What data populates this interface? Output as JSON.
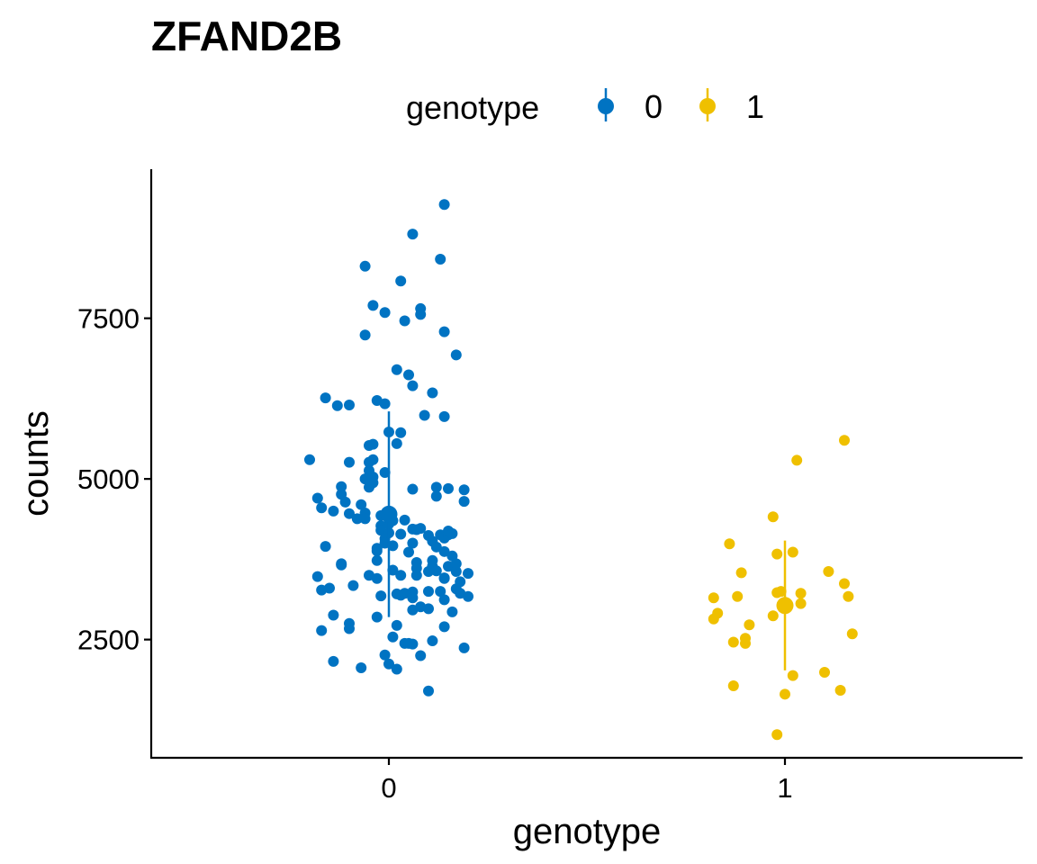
{
  "chart_data": {
    "type": "scatter",
    "title": "ZFAND2B",
    "xlabel": "genotype",
    "ylabel": "counts",
    "categories": [
      "0",
      "1"
    ],
    "ylim": [
      660,
      9820
    ],
    "yticks": [
      2500,
      5000,
      7500
    ],
    "grid": false,
    "legend": {
      "title": "genotype",
      "position": "top",
      "entries": [
        "0",
        "1"
      ]
    },
    "colors": {
      "0": "#0073C2",
      "1": "#EFC000"
    },
    "series": [
      {
        "name": "0",
        "summary": {
          "mean": 4450,
          "lower": 2850,
          "upper": 6050
        },
        "points": [
          {
            "x": -0.2,
            "y": 5300
          },
          {
            "x": -0.18,
            "y": 4700
          },
          {
            "x": -0.17,
            "y": 4550
          },
          {
            "x": -0.18,
            "y": 3480
          },
          {
            "x": -0.17,
            "y": 3270
          },
          {
            "x": -0.17,
            "y": 2640
          },
          {
            "x": -0.14,
            "y": 2880
          },
          {
            "x": -0.15,
            "y": 3300
          },
          {
            "x": -0.16,
            "y": 6260
          },
          {
            "x": -0.16,
            "y": 3950
          },
          {
            "x": -0.13,
            "y": 6140
          },
          {
            "x": -0.14,
            "y": 4500
          },
          {
            "x": -0.14,
            "y": 2160
          },
          {
            "x": -0.12,
            "y": 4760
          },
          {
            "x": -0.12,
            "y": 4880
          },
          {
            "x": -0.12,
            "y": 3680
          },
          {
            "x": -0.11,
            "y": 4640
          },
          {
            "x": -0.1,
            "y": 4460
          },
          {
            "x": -0.1,
            "y": 2750
          },
          {
            "x": -0.12,
            "y": 3660
          },
          {
            "x": -0.1,
            "y": 2670
          },
          {
            "x": -0.1,
            "y": 6150
          },
          {
            "x": -0.1,
            "y": 5260
          },
          {
            "x": -0.09,
            "y": 3340
          },
          {
            "x": -0.08,
            "y": 4380
          },
          {
            "x": -0.07,
            "y": 2060
          },
          {
            "x": -0.07,
            "y": 4600
          },
          {
            "x": -0.06,
            "y": 4470
          },
          {
            "x": -0.06,
            "y": 4380
          },
          {
            "x": -0.05,
            "y": 4870
          },
          {
            "x": -0.05,
            "y": 3500
          },
          {
            "x": -0.05,
            "y": 5130
          },
          {
            "x": -0.04,
            "y": 5300
          },
          {
            "x": -0.04,
            "y": 4940
          },
          {
            "x": -0.03,
            "y": 3450
          },
          {
            "x": -0.06,
            "y": 5000
          },
          {
            "x": -0.06,
            "y": 8310
          },
          {
            "x": -0.06,
            "y": 7240
          },
          {
            "x": -0.05,
            "y": 5520
          },
          {
            "x": -0.05,
            "y": 5260
          },
          {
            "x": -0.04,
            "y": 7700
          },
          {
            "x": -0.03,
            "y": 6220
          },
          {
            "x": -0.04,
            "y": 5540
          },
          {
            "x": -0.04,
            "y": 5030
          },
          {
            "x": -0.03,
            "y": 2850
          },
          {
            "x": -0.02,
            "y": 3180
          },
          {
            "x": -0.01,
            "y": 7590
          },
          {
            "x": -0.01,
            "y": 6170
          },
          {
            "x": -0.01,
            "y": 5100
          },
          {
            "x": -0.03,
            "y": 3730
          },
          {
            "x": -0.03,
            "y": 3880
          },
          {
            "x": -0.03,
            "y": 3920
          },
          {
            "x": -0.02,
            "y": 4270
          },
          {
            "x": -0.02,
            "y": 4200
          },
          {
            "x": -0.01,
            "y": 4070
          },
          {
            "x": -0.01,
            "y": 4000
          },
          {
            "x": -0.02,
            "y": 4430
          },
          {
            "x": -0.01,
            "y": 2260
          },
          {
            "x": 0.0,
            "y": 5730
          },
          {
            "x": 0.0,
            "y": 4300
          },
          {
            "x": 0.0,
            "y": 4160
          },
          {
            "x": 0.0,
            "y": 2120
          },
          {
            "x": 0.01,
            "y": 4350
          },
          {
            "x": 0.01,
            "y": 3580
          },
          {
            "x": 0.01,
            "y": 3960
          },
          {
            "x": 0.01,
            "y": 2540
          },
          {
            "x": 0.02,
            "y": 6700
          },
          {
            "x": 0.02,
            "y": 3210
          },
          {
            "x": 0.02,
            "y": 2720
          },
          {
            "x": 0.02,
            "y": 2040
          },
          {
            "x": 0.02,
            "y": 5550
          },
          {
            "x": 0.03,
            "y": 8080
          },
          {
            "x": 0.03,
            "y": 5720
          },
          {
            "x": 0.03,
            "y": 3500
          },
          {
            "x": 0.04,
            "y": 7460
          },
          {
            "x": 0.04,
            "y": 4360
          },
          {
            "x": 0.03,
            "y": 4140
          },
          {
            "x": 0.03,
            "y": 3190
          },
          {
            "x": 0.04,
            "y": 3220
          },
          {
            "x": 0.04,
            "y": 2440
          },
          {
            "x": 0.05,
            "y": 6620
          },
          {
            "x": 0.05,
            "y": 3860
          },
          {
            "x": 0.05,
            "y": 2440
          },
          {
            "x": 0.06,
            "y": 4000
          },
          {
            "x": 0.06,
            "y": 3240
          },
          {
            "x": 0.06,
            "y": 2960
          },
          {
            "x": 0.06,
            "y": 4840
          },
          {
            "x": 0.06,
            "y": 6450
          },
          {
            "x": 0.06,
            "y": 4220
          },
          {
            "x": 0.06,
            "y": 3150
          },
          {
            "x": 0.06,
            "y": 2430
          },
          {
            "x": 0.06,
            "y": 8810
          },
          {
            "x": 0.07,
            "y": 4210
          },
          {
            "x": 0.07,
            "y": 3700
          },
          {
            "x": 0.07,
            "y": 3500
          },
          {
            "x": 0.08,
            "y": 7650
          },
          {
            "x": 0.08,
            "y": 4230
          },
          {
            "x": 0.07,
            "y": 3610
          },
          {
            "x": 0.08,
            "y": 3010
          },
          {
            "x": 0.08,
            "y": 2250
          },
          {
            "x": 0.08,
            "y": 7560
          },
          {
            "x": 0.09,
            "y": 5990
          },
          {
            "x": 0.1,
            "y": 3250
          },
          {
            "x": 0.1,
            "y": 3560
          },
          {
            "x": 0.1,
            "y": 1700
          },
          {
            "x": 0.1,
            "y": 4120
          },
          {
            "x": 0.1,
            "y": 2980
          },
          {
            "x": 0.11,
            "y": 6340
          },
          {
            "x": 0.11,
            "y": 3730
          },
          {
            "x": 0.11,
            "y": 2480
          },
          {
            "x": 0.11,
            "y": 4030
          },
          {
            "x": 0.11,
            "y": 3640
          },
          {
            "x": 0.12,
            "y": 4870
          },
          {
            "x": 0.12,
            "y": 4730
          },
          {
            "x": 0.12,
            "y": 3940
          },
          {
            "x": 0.12,
            "y": 3570
          },
          {
            "x": 0.13,
            "y": 4130
          },
          {
            "x": 0.13,
            "y": 3250
          },
          {
            "x": 0.13,
            "y": 8420
          },
          {
            "x": 0.14,
            "y": 9270
          },
          {
            "x": 0.14,
            "y": 7290
          },
          {
            "x": 0.14,
            "y": 3450
          },
          {
            "x": 0.14,
            "y": 3460
          },
          {
            "x": 0.14,
            "y": 2700
          },
          {
            "x": 0.14,
            "y": 4080
          },
          {
            "x": 0.14,
            "y": 3870
          },
          {
            "x": 0.14,
            "y": 3120
          },
          {
            "x": 0.14,
            "y": 5970
          },
          {
            "x": 0.15,
            "y": 4850
          },
          {
            "x": 0.15,
            "y": 4130
          },
          {
            "x": 0.15,
            "y": 3640
          },
          {
            "x": 0.15,
            "y": 4190
          },
          {
            "x": 0.16,
            "y": 4150
          },
          {
            "x": 0.16,
            "y": 3800
          },
          {
            "x": 0.16,
            "y": 2930
          },
          {
            "x": 0.17,
            "y": 6930
          },
          {
            "x": 0.17,
            "y": 3560
          },
          {
            "x": 0.17,
            "y": 3290
          },
          {
            "x": 0.17,
            "y": 3680
          },
          {
            "x": 0.18,
            "y": 3220
          },
          {
            "x": 0.18,
            "y": 3400
          },
          {
            "x": 0.19,
            "y": 4650
          },
          {
            "x": 0.19,
            "y": 4830
          },
          {
            "x": 0.19,
            "y": 2370
          },
          {
            "x": 0.2,
            "y": 3170
          },
          {
            "x": 0.2,
            "y": 3530
          }
        ]
      },
      {
        "name": "1",
        "summary": {
          "mean": 3030,
          "lower": 2020,
          "upper": 4040
        },
        "points": [
          {
            "x": -0.18,
            "y": 3150
          },
          {
            "x": -0.18,
            "y": 2820
          },
          {
            "x": -0.17,
            "y": 2910
          },
          {
            "x": -0.14,
            "y": 3990
          },
          {
            "x": -0.13,
            "y": 2460
          },
          {
            "x": -0.13,
            "y": 1780
          },
          {
            "x": -0.12,
            "y": 3170
          },
          {
            "x": -0.11,
            "y": 3540
          },
          {
            "x": -0.1,
            "y": 2440
          },
          {
            "x": -0.1,
            "y": 2520
          },
          {
            "x": -0.09,
            "y": 2730
          },
          {
            "x": -0.03,
            "y": 4410
          },
          {
            "x": -0.03,
            "y": 2870
          },
          {
            "x": -0.02,
            "y": 3230
          },
          {
            "x": -0.02,
            "y": 3830
          },
          {
            "x": -0.02,
            "y": 1020
          },
          {
            "x": -0.01,
            "y": 3250
          },
          {
            "x": 0.0,
            "y": 1650
          },
          {
            "x": 0.02,
            "y": 3860
          },
          {
            "x": 0.02,
            "y": 1940
          },
          {
            "x": 0.03,
            "y": 5290
          },
          {
            "x": 0.04,
            "y": 3060
          },
          {
            "x": 0.04,
            "y": 3220
          },
          {
            "x": 0.1,
            "y": 1990
          },
          {
            "x": 0.11,
            "y": 3560
          },
          {
            "x": 0.14,
            "y": 1710
          },
          {
            "x": 0.15,
            "y": 5600
          },
          {
            "x": 0.15,
            "y": 3370
          },
          {
            "x": 0.16,
            "y": 3170
          },
          {
            "x": 0.17,
            "y": 2590
          }
        ]
      }
    ]
  }
}
